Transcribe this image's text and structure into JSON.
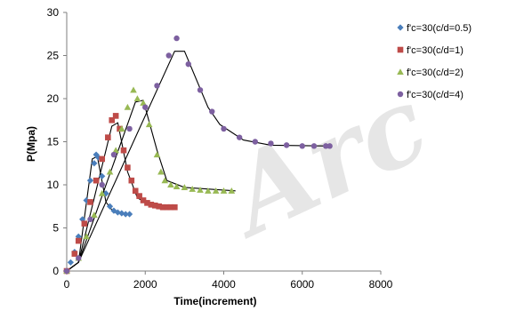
{
  "watermark": "Arc",
  "chart_data": {
    "type": "scatter",
    "title": "",
    "xlabel": "Time(increment)",
    "ylabel": "P(Mpa)",
    "xlim": [
      0,
      8000
    ],
    "ylim": [
      0,
      30
    ],
    "x_ticks": [
      0,
      2000,
      4000,
      6000,
      8000
    ],
    "y_ticks": [
      0,
      5,
      10,
      15,
      20,
      25,
      30
    ],
    "grid": false,
    "legend_position": "right",
    "series": [
      {
        "name": "f'c=30(c/d=0.5)",
        "marker": "diamond",
        "color": "#4a7ebb",
        "points": [
          [
            0,
            0
          ],
          [
            100,
            1
          ],
          [
            200,
            2.2
          ],
          [
            300,
            4
          ],
          [
            400,
            6
          ],
          [
            500,
            8.2
          ],
          [
            600,
            10.5
          ],
          [
            700,
            12.5
          ],
          [
            750,
            13.5
          ],
          [
            800,
            13.2
          ],
          [
            900,
            11
          ],
          [
            1000,
            9
          ],
          [
            1100,
            7.5
          ],
          [
            1200,
            7
          ],
          [
            1300,
            6.8
          ],
          [
            1400,
            6.7
          ],
          [
            1500,
            6.6
          ],
          [
            1600,
            6.6
          ]
        ],
        "fit": [
          [
            0,
            0
          ],
          [
            300,
            1
          ],
          [
            650,
            13
          ],
          [
            780,
            13.3
          ],
          [
            1000,
            8
          ],
          [
            1200,
            6.8
          ],
          [
            1650,
            6.6
          ]
        ]
      },
      {
        "name": "f'c=30(c/d=1)",
        "marker": "square",
        "color": "#be4b48",
        "points": [
          [
            0,
            0
          ],
          [
            200,
            2
          ],
          [
            300,
            3.5
          ],
          [
            450,
            5.5
          ],
          [
            600,
            8
          ],
          [
            750,
            10.5
          ],
          [
            900,
            13
          ],
          [
            1050,
            15.5
          ],
          [
            1150,
            17.5
          ],
          [
            1250,
            18
          ],
          [
            1350,
            16.5
          ],
          [
            1450,
            14
          ],
          [
            1550,
            12
          ],
          [
            1650,
            10.5
          ],
          [
            1750,
            9.3
          ],
          [
            1850,
            8.7
          ],
          [
            1950,
            8.2
          ],
          [
            2050,
            7.9
          ],
          [
            2150,
            7.7
          ],
          [
            2250,
            7.6
          ],
          [
            2350,
            7.5
          ],
          [
            2450,
            7.4
          ],
          [
            2550,
            7.4
          ],
          [
            2650,
            7.4
          ],
          [
            2750,
            7.4
          ]
        ],
        "fit": [
          [
            0,
            0
          ],
          [
            300,
            1
          ],
          [
            1150,
            16.8
          ],
          [
            1300,
            17.2
          ],
          [
            1550,
            11.5
          ],
          [
            1800,
            8.5
          ],
          [
            2100,
            7.7
          ],
          [
            2800,
            7.4
          ]
        ]
      },
      {
        "name": "f'c=30(c/d=2)",
        "marker": "triangle",
        "color": "#98b954",
        "points": [
          [
            0,
            0
          ],
          [
            300,
            1.5
          ],
          [
            500,
            4
          ],
          [
            700,
            6.5
          ],
          [
            900,
            9
          ],
          [
            1100,
            11.5
          ],
          [
            1250,
            14
          ],
          [
            1400,
            16.5
          ],
          [
            1550,
            19
          ],
          [
            1700,
            21
          ],
          [
            1800,
            20
          ],
          [
            1950,
            19.5
          ],
          [
            2100,
            17
          ],
          [
            2300,
            13.5
          ],
          [
            2400,
            11.5
          ],
          [
            2500,
            10.5
          ],
          [
            2650,
            10
          ],
          [
            2800,
            9.8
          ],
          [
            3000,
            9.7
          ],
          [
            3200,
            9.5
          ],
          [
            3400,
            9.4
          ],
          [
            3600,
            9.3
          ],
          [
            3800,
            9.3
          ],
          [
            4000,
            9.3
          ],
          [
            4200,
            9.3
          ]
        ],
        "fit": [
          [
            0,
            0
          ],
          [
            300,
            1
          ],
          [
            1750,
            19.6
          ],
          [
            1950,
            19.8
          ],
          [
            2300,
            14
          ],
          [
            2550,
            10.5
          ],
          [
            3000,
            9.7
          ],
          [
            4300,
            9.3
          ]
        ]
      },
      {
        "name": "f'c=30(c/d=4)",
        "marker": "circle",
        "color": "#7d60a0",
        "points": [
          [
            0,
            0
          ],
          [
            300,
            1.5
          ],
          [
            600,
            6
          ],
          [
            900,
            10
          ],
          [
            1200,
            13.5
          ],
          [
            1600,
            16.5
          ],
          [
            2000,
            19
          ],
          [
            2300,
            21.5
          ],
          [
            2600,
            25
          ],
          [
            2800,
            27
          ],
          [
            3100,
            24
          ],
          [
            3400,
            21
          ],
          [
            3700,
            18.5
          ],
          [
            4000,
            16.5
          ],
          [
            4400,
            15.5
          ],
          [
            4800,
            15
          ],
          [
            5200,
            14.8
          ],
          [
            5600,
            14.6
          ],
          [
            6000,
            14.5
          ],
          [
            6300,
            14.5
          ],
          [
            6600,
            14.5
          ],
          [
            6700,
            14.5
          ]
        ],
        "fit": [
          [
            0,
            0
          ],
          [
            300,
            1
          ],
          [
            2750,
            25.5
          ],
          [
            3000,
            25.5
          ],
          [
            3600,
            19
          ],
          [
            3900,
            17
          ],
          [
            4500,
            15.2
          ],
          [
            5200,
            14.6
          ],
          [
            6700,
            14.5
          ]
        ]
      }
    ]
  }
}
